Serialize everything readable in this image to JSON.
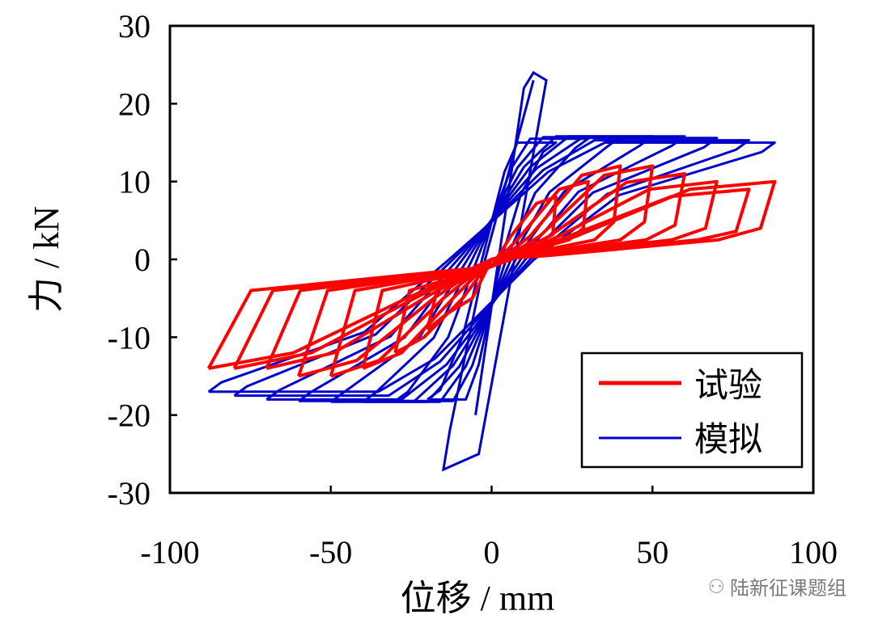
{
  "chart_data": {
    "type": "line",
    "title": "",
    "xlabel": "位移 / mm",
    "ylabel": "力 / kN",
    "xlim": [
      -100,
      100
    ],
    "ylim": [
      -30,
      30
    ],
    "xticks": [
      -100,
      -50,
      0,
      50,
      100
    ],
    "xtick_labels": [
      "-100",
      "-50",
      "0",
      "50",
      "100"
    ],
    "yticks": [
      -30,
      -20,
      -10,
      0,
      10,
      20,
      30
    ],
    "ytick_labels": [
      "-30",
      "-20",
      "-10",
      "0",
      "10",
      "20",
      "30"
    ],
    "grid": false,
    "legend_position": "bottom-right",
    "series": [
      {
        "name": "试验",
        "color": "#ff0000",
        "style": "hysteresis",
        "amplitudes": [
          20,
          30,
          40,
          50,
          60,
          70,
          80,
          88
        ],
        "peak_positive_force": [
          8,
          10,
          12,
          12,
          11,
          10,
          9,
          10
        ],
        "peak_negative_force": [
          -9,
          -12,
          -14,
          -15,
          -15,
          -14,
          -14,
          -14
        ],
        "residual_band": [
          3,
          -3
        ]
      },
      {
        "name": "模拟",
        "color": "#0000cc",
        "style": "hysteresis",
        "initial_cycle": {
          "x": [
            -15,
            13
          ],
          "y": [
            -27,
            24
          ]
        },
        "amplitudes": [
          20,
          30,
          40,
          50,
          60,
          70,
          80,
          88
        ],
        "peak_positive_force": [
          15,
          15.5,
          15.7,
          15.8,
          15.8,
          15.6,
          15.3,
          15
        ],
        "peak_negative_force": [
          -18,
          -18.2,
          -18.3,
          -18.3,
          -18.2,
          -18,
          -17.5,
          -17
        ]
      }
    ]
  },
  "watermark": {
    "icon": "wechat-icon",
    "text": "陆新征课题组"
  }
}
